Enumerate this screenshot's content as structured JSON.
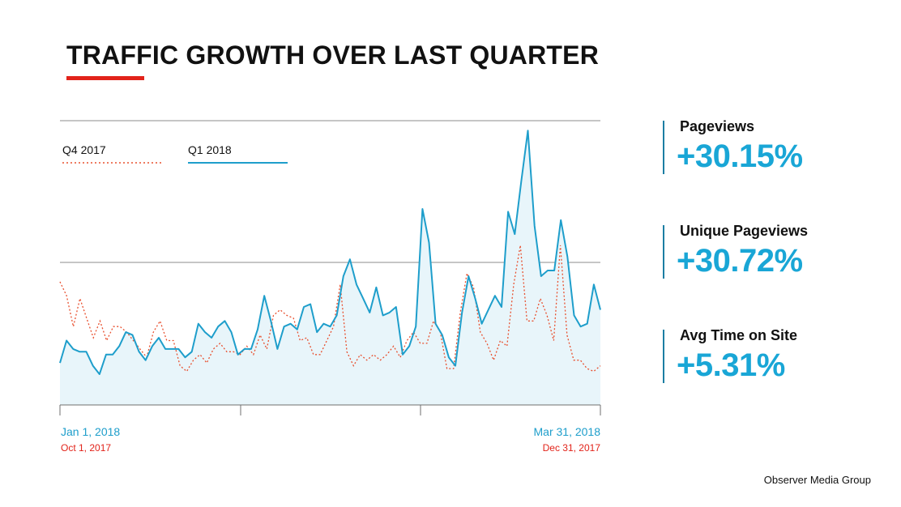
{
  "title": "TRAFFIC GROWTH OVER LAST QUARTER",
  "colors": {
    "accent_red": "#e2231a",
    "q1_line": "#1e9ecb",
    "q1_fill": "#e8f5fa",
    "q4_line": "#e8502f",
    "grid": "#8c8c8c",
    "stat_value": "#19a6d6"
  },
  "stats": [
    {
      "label": "Pageviews",
      "value": "+30.15%"
    },
    {
      "label": "Unique Pageviews",
      "value": "+30.72%"
    },
    {
      "label": "Avg Time on Site",
      "value": "+5.31%"
    }
  ],
  "footer": "Observer Media Group",
  "chart_data": {
    "type": "line",
    "title": "TRAFFIC GROWTH OVER LAST QUARTER",
    "grid": true,
    "legend": "top-left",
    "x_labels": {
      "start_primary": "Jan 1, 2018",
      "start_secondary": "Oct 1, 2017",
      "end_primary": "Mar 31, 2018",
      "end_secondary": "Dec 31, 2017"
    },
    "series": [
      {
        "name": "Q4 2017",
        "style": "dotted",
        "values": [
          44,
          39,
          28,
          38,
          31,
          24,
          30,
          23,
          28,
          28,
          26,
          23,
          20,
          17,
          26,
          30,
          23,
          23,
          14,
          12,
          16,
          18,
          15,
          20,
          22,
          19,
          19,
          18,
          21,
          18,
          25,
          20,
          32,
          34,
          32,
          31,
          23,
          24,
          18,
          18,
          23,
          28,
          43,
          19,
          14,
          18,
          16,
          18,
          16,
          18,
          21,
          17,
          23,
          26,
          22,
          22,
          30,
          26,
          13,
          13,
          33,
          47,
          42,
          26,
          22,
          16,
          23,
          21,
          43,
          57,
          30,
          30,
          38,
          32,
          23,
          57,
          25,
          16,
          16,
          13,
          12,
          14
        ]
      },
      {
        "name": "Q1 2018",
        "style": "solid",
        "values": [
          15,
          23,
          20,
          19,
          19,
          14,
          11,
          18,
          18,
          21,
          26,
          25,
          19,
          16,
          21,
          24,
          20,
          20,
          20,
          17,
          19,
          29,
          26,
          24,
          28,
          30,
          26,
          18,
          20,
          20,
          27,
          39,
          30,
          20,
          28,
          29,
          27,
          35,
          36,
          26,
          29,
          28,
          32,
          46,
          52,
          43,
          38,
          33,
          42,
          32,
          33,
          35,
          18,
          21,
          28,
          70,
          58,
          29,
          25,
          17,
          14,
          33,
          46,
          38,
          29,
          34,
          39,
          35,
          69,
          61,
          80,
          98,
          64,
          46,
          48,
          48,
          66,
          53,
          32,
          28,
          29,
          43,
          34
        ]
      }
    ]
  }
}
